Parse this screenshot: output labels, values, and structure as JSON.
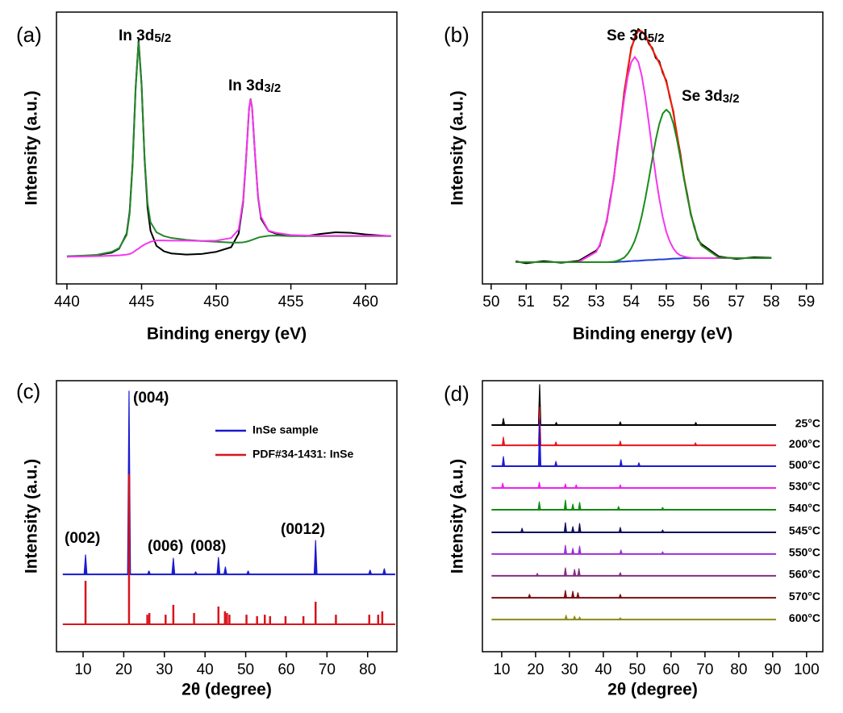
{
  "chart_data": [
    {
      "type": "line",
      "label": "(a)",
      "xlabel": "Binding energy (eV)",
      "ylabel": "Intensity (a.u.)",
      "xlim": [
        439.3,
        462.1
      ],
      "xticks": [
        440,
        445,
        450,
        455,
        460
      ],
      "ylim": [
        0,
        100
      ],
      "annotations": [
        {
          "text": "In 3d",
          "sub": "5/2"
        },
        {
          "text": "In 3d",
          "sub": "3/2"
        }
      ],
      "x": [
        440,
        441,
        442,
        443,
        443.5,
        444,
        444.2,
        444.4,
        444.6,
        444.8,
        445.0,
        445.2,
        445.4,
        445.6,
        446,
        446.5,
        447,
        448,
        449,
        450,
        451,
        451.5,
        451.8,
        452.0,
        452.2,
        452.3,
        452.4,
        452.6,
        452.8,
        453.0,
        453.5,
        454,
        455,
        456,
        457,
        458,
        459,
        460,
        461,
        461.7
      ],
      "series": [
        {
          "color": "#000000",
          "values": [
            10.0,
            10.3,
            10.6,
            11.5,
            13.0,
            18.5,
            26.5,
            44.5,
            72.0,
            89.5,
            73.5,
            46.0,
            28.0,
            19.5,
            14.0,
            12.0,
            11.2,
            10.8,
            11.0,
            11.8,
            13.5,
            18.5,
            30.0,
            46.0,
            64.5,
            68.0,
            65.0,
            47.5,
            32.0,
            24.0,
            19.5,
            18.5,
            17.8,
            17.6,
            18.4,
            19.0,
            18.8,
            18.2,
            17.8,
            17.6
          ]
        },
        {
          "color": "#23882a",
          "values": [
            10.2,
            10.4,
            10.7,
            11.8,
            13.2,
            18.0,
            25.8,
            43.6,
            71.4,
            89.0,
            72.9,
            46.6,
            29.8,
            22.7,
            19.0,
            17.6,
            16.9,
            16.2,
            15.8,
            15.5,
            15.2,
            15.2,
            15.3,
            15.5,
            15.8,
            16.0,
            16.2,
            16.6,
            17.0,
            17.3,
            17.7,
            17.8,
            17.6,
            17.6,
            17.6,
            17.6,
            17.6,
            17.6,
            17.6,
            17.6
          ]
        },
        {
          "color": "#f536f0",
          "values": [
            10.0,
            10.1,
            10.2,
            10.4,
            10.5,
            10.8,
            11.0,
            11.5,
            12.3,
            13.0,
            13.8,
            14.5,
            15.0,
            15.5,
            16.0,
            16.0,
            15.9,
            15.9,
            15.8,
            15.9,
            16.9,
            20.0,
            30.8,
            46.6,
            64.6,
            67.9,
            65.0,
            47.7,
            32.5,
            24.7,
            19.6,
            18.8,
            18.0,
            17.8,
            17.7,
            17.7,
            17.7,
            17.7,
            17.7,
            17.7
          ]
        }
      ]
    },
    {
      "type": "line",
      "label": "(b)",
      "xlabel": "Binding energy (eV)",
      "ylabel": "Intensity (a.u.)",
      "xlim": [
        49.75,
        59.47
      ],
      "xticks": [
        50,
        51,
        52,
        53,
        54,
        55,
        56,
        57,
        58,
        59
      ],
      "ylim": [
        0,
        100
      ],
      "annotations": [
        {
          "text": "Se 3d",
          "sub": "5/2"
        },
        {
          "text": "Se 3d",
          "sub": "3/2"
        }
      ],
      "x": [
        50.7,
        51,
        51.5,
        52,
        52.5,
        53.0,
        53.1,
        53.2,
        53.3,
        53.4,
        53.5,
        53.6,
        53.7,
        53.8,
        53.9,
        54.0,
        54.1,
        54.2,
        54.3,
        54.4,
        54.5,
        54.6,
        54.7,
        54.8,
        54.9,
        55.0,
        55.1,
        55.2,
        55.3,
        55.4,
        55.5,
        55.6,
        55.7,
        55.8,
        55.9,
        56.0,
        56.5,
        57,
        57.5,
        58
      ],
      "series": [
        {
          "color": "#000000",
          "values": [
            8.3,
            7.6,
            8.4,
            7.8,
            8.5,
            12.3,
            14.0,
            18.8,
            23.0,
            31.2,
            38.5,
            49.6,
            59.0,
            70.6,
            78.5,
            86.9,
            90.2,
            93.8,
            92.6,
            91.9,
            88.4,
            86.8,
            83.1,
            81.9,
            77.6,
            74.8,
            68.7,
            63.5,
            54.9,
            48.1,
            39.2,
            32.9,
            25.5,
            21.3,
            16.4,
            14.7,
            10.1,
            9.2,
            9.8,
            9.6
          ]
        },
        {
          "color": "#ff1a00",
          "values": [
            8,
            8,
            8,
            8,
            8.1,
            11.8,
            14.4,
            18.1,
            23.5,
            30.5,
            39.0,
            48.9,
            59.6,
            69.8,
            79.1,
            86.3,
            90.9,
            93.0,
            93.0,
            91.4,
            89.0,
            86.3,
            83.8,
            81.2,
            78.2,
            74.2,
            69.3,
            62.9,
            55.5,
            47.6,
            39.7,
            32.4,
            26.0,
            20.8,
            16.9,
            14.2,
            9.7,
            9.5,
            9.5,
            9.5
          ]
        },
        {
          "color": "#2040d0",
          "values": [
            8,
            8,
            8,
            8,
            8,
            8,
            8,
            8,
            8,
            8,
            8,
            8.1,
            8.2,
            8.2,
            8.3,
            8.4,
            8.5,
            8.5,
            8.6,
            8.7,
            8.8,
            8.8,
            8.9,
            9.0,
            9.0,
            9.1,
            9.2,
            9.3,
            9.3,
            9.4,
            9.5,
            9.5,
            9.5,
            9.5,
            9.5,
            9.5,
            9.5,
            9.5,
            9.5,
            9.5
          ]
        },
        {
          "color": "#f536f0",
          "values": [
            8,
            8,
            8,
            8,
            8.1,
            11.8,
            14.4,
            18.1,
            23.5,
            30.4,
            38.8,
            48.5,
            58.8,
            68.3,
            76.3,
            81.6,
            83.5,
            81.7,
            76.6,
            68.8,
            59.4,
            49.2,
            39.7,
            31.4,
            24.5,
            19.2,
            15.6,
            13.1,
            11.4,
            10.5,
            10.1,
            9.8,
            9.6,
            9.5,
            9.5,
            9.5,
            9.5,
            9.5,
            9.5,
            9.5
          ]
        },
        {
          "color": "#1a8c1a",
          "values": [
            8,
            8,
            8,
            8,
            8,
            8.0,
            8.0,
            8.0,
            8.0,
            8.1,
            8.2,
            8.5,
            9.0,
            9.7,
            11.1,
            13.1,
            15.9,
            19.8,
            25.0,
            31.3,
            38.4,
            45.9,
            53.0,
            58.8,
            62.7,
            64.1,
            62.9,
            59.1,
            53.4,
            46.5,
            39.1,
            32.1,
            25.9,
            20.8,
            16.9,
            14.2,
            9.7,
            9.5,
            9.5,
            9.5
          ]
        }
      ]
    },
    {
      "type": "stick",
      "label": "(c)",
      "xlabel": "2θ (degree)",
      "ylabel": "Intensity (a.u.)",
      "xlim": [
        3.45,
        87.2
      ],
      "xticks": [
        10,
        20,
        30,
        40,
        50,
        60,
        70,
        80
      ],
      "ylim": [
        4,
        100
      ],
      "legend": "upper right",
      "annotations": [
        {
          "text": "(004)"
        },
        {
          "text": "(002)"
        },
        {
          "text": "(006)"
        },
        {
          "text": "(008)"
        },
        {
          "text": "(0012)"
        }
      ],
      "trace_x": [
        5.0,
        86.8
      ],
      "series": [
        {
          "name": "InSe sample",
          "color": "#1a1ad0",
          "style": "peak",
          "base": 31.4,
          "peaks_x": [
            10.6,
            21.3,
            26.2,
            32.2,
            37.7,
            43.3,
            45.0,
            50.6,
            67.2,
            80.6,
            84.1
          ],
          "peaks": [
            38.3,
            96.3,
            32.6,
            37.1,
            32.3,
            37.4,
            34.0,
            32.6,
            43.4,
            32.9,
            33.4
          ]
        },
        {
          "name": "PDF#34-1431: InSe",
          "color": "#d8141c",
          "style": "stick",
          "base": 13.7,
          "peaks_x": [
            10.6,
            21.3,
            25.8,
            26.3,
            30.3,
            32.2,
            37.3,
            43.3,
            44.9,
            45.4,
            46.0,
            50.2,
            52.8,
            54.7,
            56.0,
            59.8,
            64.2,
            67.2,
            72.2,
            80.4,
            82.6,
            83.6
          ],
          "peaks": [
            29.1,
            66.9,
            17.1,
            17.7,
            17.1,
            20.6,
            17.7,
            20.0,
            18.3,
            17.7,
            17.1,
            17.1,
            16.6,
            17.1,
            16.6,
            16.6,
            16.6,
            21.7,
            17.1,
            17.1,
            17.1,
            18.3
          ]
        }
      ]
    },
    {
      "type": "stick",
      "label": "(d)",
      "xlabel": "2θ (degree)",
      "ylabel": "Intensity (a.u.)",
      "xlim": [
        4.3,
        104.8
      ],
      "xticks": [
        10,
        20,
        30,
        40,
        50,
        60,
        70,
        80,
        90,
        100
      ],
      "ylim": [
        4,
        100
      ],
      "legend": "right",
      "trace_x": [
        7.0,
        91.0
      ],
      "series": [
        {
          "name": "25°C",
          "color": "#000000",
          "style": "peak",
          "base": 84.3,
          "peaks_x": [
            10.5,
            21.2,
            26.1,
            45.0,
            67.3
          ],
          "peaks": [
            86.6,
            98.6,
            85.2,
            85.4,
            85.2
          ]
        },
        {
          "name": "200°C",
          "color": "#e8141c",
          "style": "peak",
          "base": 77.1,
          "peaks_x": [
            10.5,
            21.2,
            26.0,
            45.0,
            67.2
          ],
          "peaks": [
            80.0,
            90.6,
            78.3,
            78.6,
            78.0
          ]
        },
        {
          "name": "500°C",
          "color": "#1a1ad6",
          "style": "peak",
          "base": 69.7,
          "peaks_x": [
            10.5,
            21.2,
            26.0,
            45.2,
            50.5
          ],
          "peaks": [
            73.1,
            86.3,
            71.4,
            72.0,
            70.9
          ]
        },
        {
          "name": "530°C",
          "color": "#f020f0",
          "style": "peak",
          "base": 62.0,
          "peaks_x": [
            10.3,
            21.1,
            28.8,
            32.0,
            45.0
          ],
          "peaks": [
            63.7,
            64.0,
            63.4,
            63.1,
            63.1
          ]
        },
        {
          "name": "540°C",
          "color": "#138a13",
          "style": "peak",
          "base": 54.3,
          "peaks_x": [
            21.1,
            28.8,
            31.0,
            33.0,
            44.5,
            57.5
          ],
          "peaks": [
            57.1,
            57.7,
            56.3,
            56.9,
            55.4,
            55.1
          ]
        },
        {
          "name": "545°C",
          "color": "#10105e",
          "style": "peak",
          "base": 46.3,
          "peaks_x": [
            16.0,
            28.8,
            31.0,
            33.0,
            45.0,
            57.5
          ],
          "peaks": [
            47.7,
            49.7,
            48.3,
            49.4,
            48.0,
            47.1
          ]
        },
        {
          "name": "550°C",
          "color": "#9b30d8",
          "style": "peak",
          "base": 38.6,
          "peaks_x": [
            28.8,
            31.0,
            33.0,
            45.2,
            57.5
          ],
          "peaks": [
            41.7,
            40.6,
            41.4,
            40.0,
            39.4
          ]
        },
        {
          "name": "560°C",
          "color": "#80307f",
          "style": "peak",
          "base": 30.9,
          "peaks_x": [
            20.5,
            28.8,
            31.5,
            32.8,
            45.0
          ],
          "peaks": [
            31.7,
            33.7,
            33.1,
            33.4,
            32.0
          ]
        },
        {
          "name": "570°C",
          "color": "#7a0e0e",
          "style": "peak",
          "base": 23.1,
          "peaks_x": [
            18.2,
            28.8,
            31.0,
            32.5,
            45.0
          ],
          "peaks": [
            24.3,
            25.7,
            25.4,
            24.9,
            24.3
          ]
        },
        {
          "name": "600°C",
          "color": "#8a8a1a",
          "style": "peak",
          "base": 15.4,
          "peaks_x": [
            29.0,
            31.5,
            33.0,
            45.0
          ],
          "peaks": [
            16.9,
            16.6,
            16.3,
            16.0
          ]
        }
      ]
    }
  ]
}
